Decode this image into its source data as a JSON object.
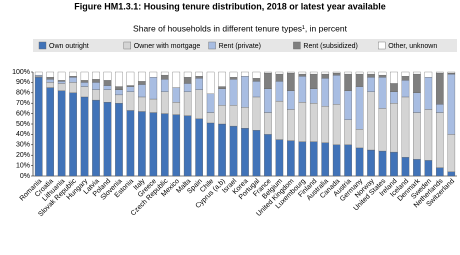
{
  "chart_data": {
    "type": "stacked-bar",
    "title": "Figure HM1.3.1: Housing tenure distribution, 2018 or latest year available",
    "subtitle": "Share of households in different tenure types¹, in percent",
    "categories": [
      "Romania",
      "Croatia",
      "Lithuania",
      "Slovak Republic",
      "Hungary",
      "Latvia",
      "Poland",
      "Slovenia",
      "Estonia",
      "Italy",
      "Greece",
      "Czech Republic",
      "Mexico",
      "Malta",
      "Spain",
      "Chile",
      "Cyprus (a,b)",
      "Israel",
      "Korea",
      "Portugal",
      "France",
      "Belgium",
      "United Kingdom",
      "Luxembourg",
      "Finland",
      "Australia",
      "Canada",
      "Austria",
      "Germany",
      "Norway",
      "United States",
      "Ireland",
      "Iceland",
      "Denmark",
      "Sweden",
      "Netherlands",
      "Switzerland"
    ],
    "series": [
      {
        "name": "Own outright",
        "color": "#4173b8",
        "values": [
          95,
          85,
          82,
          80,
          76,
          73,
          71,
          70,
          63,
          62,
          61,
          60,
          59,
          58,
          55,
          51,
          50,
          48,
          46,
          44,
          40,
          35,
          34,
          33,
          33,
          32,
          30,
          30,
          27,
          25,
          24,
          23,
          18,
          16,
          15,
          8,
          4
        ]
      },
      {
        "name": "Owner with mortgage",
        "color": "#d4d4d4",
        "values": [
          1,
          5,
          7,
          10,
          10,
          10,
          12,
          8,
          18,
          14,
          13,
          21,
          12,
          23,
          28,
          10,
          18,
          20,
          20,
          32,
          21,
          37,
          30,
          38,
          37,
          35,
          39,
          24,
          18,
          56,
          41,
          47,
          58,
          45,
          49,
          53,
          36
        ]
      },
      {
        "name": "Rent (private)",
        "color": "#a8bde2",
        "values": [
          1,
          3,
          2,
          5,
          4,
          7,
          4,
          5,
          5,
          12,
          21,
          12,
          14,
          8,
          11,
          18,
          16,
          25,
          30,
          15,
          23,
          19,
          18,
          25,
          14,
          27,
          28,
          28,
          41,
          14,
          30,
          11,
          16,
          19,
          31,
          8,
          58
        ]
      },
      {
        "name": "Rent (subsidized)",
        "color": "#7f7f7f",
        "values": [
          0,
          2,
          1,
          1,
          2,
          3,
          5,
          3,
          1,
          3,
          0,
          4,
          0,
          6,
          2,
          0,
          2,
          2,
          0,
          3,
          15,
          7,
          17,
          2,
          14,
          4,
          2,
          16,
          12,
          3,
          2,
          8,
          4,
          18,
          0,
          30,
          1
        ]
      },
      {
        "name": "Other, unknown",
        "color": "#ffffff",
        "values": [
          3,
          5,
          8,
          4,
          8,
          7,
          8,
          14,
          13,
          9,
          5,
          3,
          15,
          5,
          4,
          21,
          14,
          5,
          4,
          6,
          1,
          2,
          1,
          2,
          2,
          2,
          1,
          2,
          2,
          2,
          3,
          11,
          4,
          2,
          5,
          1,
          1
        ]
      }
    ],
    "ylim": [
      0,
      100
    ],
    "yticks": [
      {
        "value": 0,
        "label": "0%"
      },
      {
        "value": 10,
        "label": "10%"
      },
      {
        "value": 20,
        "label": "20%"
      },
      {
        "value": 30,
        "label": "30%"
      },
      {
        "value": 40,
        "label": "40%"
      },
      {
        "value": 50,
        "label": "50%"
      },
      {
        "value": 60,
        "label": "60%"
      },
      {
        "value": 70,
        "label": "70%"
      },
      {
        "value": 80,
        "label": "80%"
      },
      {
        "value": 90,
        "label": "90%"
      },
      {
        "value": 100,
        "label": "100%"
      }
    ]
  }
}
